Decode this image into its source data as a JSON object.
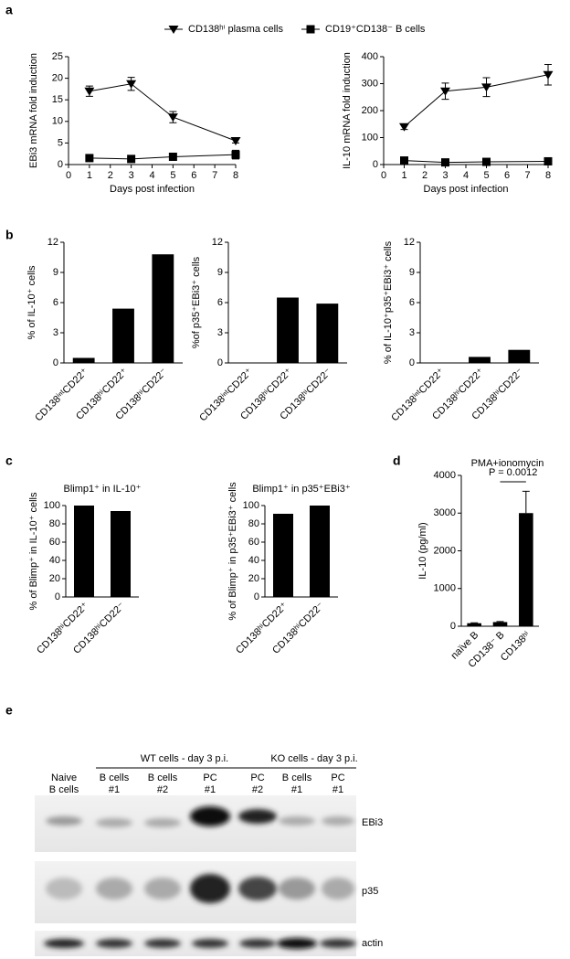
{
  "panel_labels": [
    "a",
    "b",
    "c",
    "d",
    "e"
  ],
  "chart_data": [
    {
      "type": "line",
      "ylabel": "EBi3 mRNA fold induction",
      "xlabel": "Days post infection",
      "x": [
        1,
        3,
        5,
        8
      ],
      "series": [
        {
          "name": "CD138ʰⁱ plasma cells",
          "color": "#000000",
          "marker": "triangle-down",
          "values": [
            17,
            18.7,
            11,
            5.5
          ],
          "errors": [
            1.2,
            1.5,
            1.3,
            0.5
          ]
        },
        {
          "name": "CD19⁺CD138⁻ B cells",
          "color": "#000000",
          "marker": "square",
          "values": [
            1.5,
            1.3,
            1.8,
            2.3
          ],
          "errors": [
            0.4,
            0.3,
            0.5,
            1
          ]
        }
      ],
      "xlim": [
        0,
        8
      ],
      "xticks": [
        0,
        1,
        2,
        3,
        4,
        5,
        6,
        7,
        8
      ],
      "ylim": [
        0,
        25
      ],
      "yticks": [
        0,
        5,
        10,
        15,
        20,
        25
      ]
    },
    {
      "type": "line",
      "ylabel": "IL-10 mRNA fold induction",
      "xlabel": "Days post infection",
      "x": [
        1,
        3,
        5,
        8
      ],
      "series": [
        {
          "color": "#000000",
          "marker": "triangle-down",
          "values": [
            140,
            272,
            287,
            333
          ],
          "errors": [
            10,
            30,
            35,
            38
          ]
        },
        {
          "color": "#000000",
          "marker": "square",
          "values": [
            15,
            8,
            10,
            12
          ],
          "errors": [
            3,
            2,
            3,
            3
          ]
        }
      ],
      "xlim": [
        0,
        8
      ],
      "xticks": [
        0,
        1,
        2,
        3,
        4,
        5,
        6,
        7,
        8
      ],
      "ylim": [
        0,
        400
      ],
      "yticks": [
        0,
        100,
        200,
        300,
        400
      ]
    },
    {
      "type": "bar",
      "ylabel": "% of IL-10⁺ cells",
      "categories": [
        "CD138ⁱⁿᵗCD22⁺",
        "CD138ʰⁱCD22⁺",
        "CD138ʰⁱCD22⁻"
      ],
      "values": [
        0.5,
        5.4,
        10.8
      ],
      "color": "#000000",
      "ylim": [
        0,
        12
      ],
      "yticks": [
        0,
        3,
        6,
        9,
        12
      ]
    },
    {
      "type": "bar",
      "ylabel": "%of p35⁺EBi3⁺ cells",
      "categories": [
        "CD138ⁱⁿᵗCD22⁺",
        "CD138ʰⁱCD22⁺",
        "CD138ʰⁱCD22⁻"
      ],
      "values": [
        0,
        6.5,
        5.9
      ],
      "color": "#000000",
      "ylim": [
        0,
        12
      ],
      "yticks": [
        0,
        3,
        6,
        9,
        12
      ]
    },
    {
      "type": "bar",
      "ylabel": "% of IL-10⁺p35⁺EBi3⁺ cells",
      "categories": [
        "CD138ⁱⁿᵗCD22⁺",
        "CD138ʰⁱCD22⁺",
        "CD138ʰⁱCD22⁻"
      ],
      "values": [
        0,
        0.6,
        1.3
      ],
      "color": "#000000",
      "ylim": [
        0,
        12
      ],
      "yticks": [
        0,
        3,
        6,
        9,
        12
      ]
    },
    {
      "type": "bar",
      "title": "Blimp1⁺ in IL-10⁺",
      "ylabel": "% of Blimp⁺ in IL-10⁺ cells",
      "categories": [
        "CD138ʰⁱCD22⁺",
        "CD138ʰⁱCD22⁻"
      ],
      "values": [
        100,
        94
      ],
      "color": "#000000",
      "ylim": [
        0,
        100
      ],
      "yticks": [
        0,
        20,
        40,
        60,
        80,
        100
      ]
    },
    {
      "type": "bar",
      "title": "Blimp1⁺ in p35⁺EBi3⁺",
      "ylabel": "% of Blimp⁺ in p35⁺EBi3⁺ cells",
      "categories": [
        "CD138ʰⁱCD22⁺",
        "CD138ʰⁱCD22⁻"
      ],
      "values": [
        91,
        100
      ],
      "color": "#000000",
      "ylim": [
        0,
        100
      ],
      "yticks": [
        0,
        20,
        40,
        60,
        80,
        100
      ]
    },
    {
      "type": "bar",
      "title": "PMA+ionomycin",
      "annotation": "P = 0.0012",
      "ylabel": "IL-10 (pg/ml)",
      "categories": [
        "naïve B",
        "CD138⁻ B",
        "CD138ʰⁱ"
      ],
      "values": [
        80,
        110,
        3000
      ],
      "errors": [
        10,
        15,
        580
      ],
      "color": "#000000",
      "ylim": [
        0,
        4000
      ],
      "yticks": [
        0,
        1000,
        2000,
        3000,
        4000
      ]
    }
  ],
  "blot": {
    "groups": [
      "WT cells - day 3 p.i.",
      "KO cells - day 3 p.i."
    ],
    "lanes": [
      [
        "Naive",
        "B cells"
      ],
      [
        "B cells",
        "#1"
      ],
      [
        "B cells",
        "#2"
      ],
      [
        "PC",
        "#1"
      ],
      [
        "PC",
        "#2"
      ],
      [
        "B cells",
        "#1"
      ],
      [
        "PC",
        "#1"
      ]
    ],
    "rows": [
      "EBi3",
      "p35",
      "actin"
    ]
  }
}
